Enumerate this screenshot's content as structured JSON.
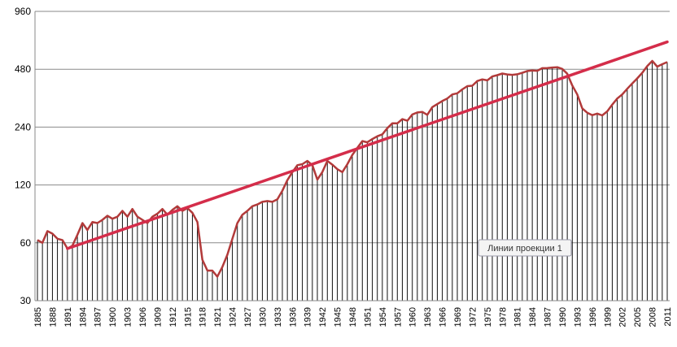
{
  "chart_data": {
    "type": "line",
    "scale_y": "log",
    "ylim": [
      30,
      960
    ],
    "yticks": [
      30,
      60,
      120,
      240,
      480,
      960
    ],
    "grid": true,
    "x_start": 1885,
    "x_end": 2011,
    "xtick_step": 3,
    "bars": true,
    "series": [
      {
        "type": "line",
        "color": "#b23a3a",
        "values": [
          [
            1885,
            62
          ],
          [
            1886,
            60
          ],
          [
            1887,
            69
          ],
          [
            1888,
            67
          ],
          [
            1889,
            63
          ],
          [
            1890,
            62
          ],
          [
            1891,
            56
          ],
          [
            1892,
            58
          ],
          [
            1893,
            66
          ],
          [
            1894,
            76
          ],
          [
            1895,
            70
          ],
          [
            1896,
            77
          ],
          [
            1897,
            76
          ],
          [
            1898,
            79
          ],
          [
            1899,
            83
          ],
          [
            1900,
            80
          ],
          [
            1901,
            82
          ],
          [
            1902,
            88
          ],
          [
            1903,
            82
          ],
          [
            1904,
            90
          ],
          [
            1905,
            82
          ],
          [
            1906,
            79
          ],
          [
            1907,
            76
          ],
          [
            1908,
            82
          ],
          [
            1909,
            85
          ],
          [
            1910,
            90
          ],
          [
            1911,
            84
          ],
          [
            1912,
            89
          ],
          [
            1913,
            93
          ],
          [
            1914,
            88
          ],
          [
            1915,
            91
          ],
          [
            1916,
            86
          ],
          [
            1917,
            77
          ],
          [
            1918,
            49
          ],
          [
            1919,
            43
          ],
          [
            1920,
            43
          ],
          [
            1921,
            40
          ],
          [
            1922,
            45
          ],
          [
            1923,
            52
          ],
          [
            1924,
            63
          ],
          [
            1925,
            76
          ],
          [
            1926,
            84
          ],
          [
            1927,
            88
          ],
          [
            1928,
            93
          ],
          [
            1929,
            95
          ],
          [
            1930,
            98
          ],
          [
            1931,
            99
          ],
          [
            1932,
            98
          ],
          [
            1933,
            101
          ],
          [
            1934,
            112
          ],
          [
            1935,
            127
          ],
          [
            1936,
            140
          ],
          [
            1937,
            152
          ],
          [
            1938,
            154
          ],
          [
            1939,
            160
          ],
          [
            1940,
            152
          ],
          [
            1941,
            128
          ],
          [
            1942,
            140
          ],
          [
            1943,
            160
          ],
          [
            1944,
            153
          ],
          [
            1945,
            145
          ],
          [
            1946,
            140
          ],
          [
            1947,
            154
          ],
          [
            1948,
            172
          ],
          [
            1949,
            187
          ],
          [
            1950,
            203
          ],
          [
            1951,
            200
          ],
          [
            1952,
            208
          ],
          [
            1953,
            215
          ],
          [
            1954,
            220
          ],
          [
            1955,
            237
          ],
          [
            1956,
            251
          ],
          [
            1957,
            251
          ],
          [
            1958,
            264
          ],
          [
            1959,
            259
          ],
          [
            1960,
            279
          ],
          [
            1961,
            286
          ],
          [
            1962,
            288
          ],
          [
            1963,
            278
          ],
          [
            1964,
            305
          ],
          [
            1965,
            316
          ],
          [
            1966,
            328
          ],
          [
            1967,
            338
          ],
          [
            1968,
            355
          ],
          [
            1969,
            360
          ],
          [
            1970,
            377
          ],
          [
            1971,
            392
          ],
          [
            1972,
            394
          ],
          [
            1973,
            417
          ],
          [
            1974,
            425
          ],
          [
            1975,
            420
          ],
          [
            1976,
            440
          ],
          [
            1977,
            447
          ],
          [
            1978,
            456
          ],
          [
            1979,
            451
          ],
          [
            1980,
            449
          ],
          [
            1981,
            452
          ],
          [
            1982,
            460
          ],
          [
            1983,
            470
          ],
          [
            1984,
            473
          ],
          [
            1985,
            471
          ],
          [
            1986,
            486
          ],
          [
            1987,
            487
          ],
          [
            1988,
            490
          ],
          [
            1989,
            492
          ],
          [
            1990,
            482
          ],
          [
            1991,
            455
          ],
          [
            1992,
            395
          ],
          [
            1993,
            355
          ],
          [
            1994,
            300
          ],
          [
            1995,
            285
          ],
          [
            1996,
            277
          ],
          [
            1997,
            282
          ],
          [
            1998,
            276
          ],
          [
            1999,
            290
          ],
          [
            2000,
            314
          ],
          [
            2001,
            338
          ],
          [
            2002,
            355
          ],
          [
            2003,
            380
          ],
          [
            2004,
            405
          ],
          [
            2005,
            430
          ],
          [
            2006,
            460
          ],
          [
            2007,
            498
          ],
          [
            2008,
            530
          ],
          [
            2009,
            495
          ],
          [
            2010,
            510
          ],
          [
            2011,
            523
          ]
        ]
      },
      {
        "type": "trend",
        "name": "Линии проекции 1",
        "color": "#d42d4a",
        "values": [
          [
            1891,
            56
          ],
          [
            2011,
            666
          ]
        ]
      }
    ],
    "legend": {
      "label": "Линии проекции 1",
      "placement": "lower-right inside plot"
    }
  }
}
